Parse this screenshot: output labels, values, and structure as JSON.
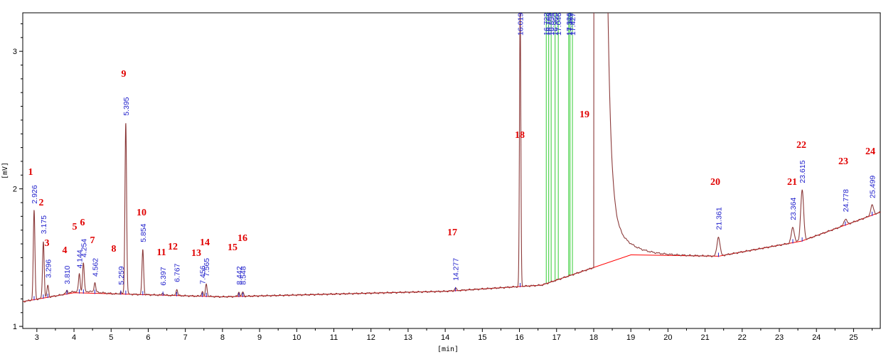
{
  "chart_data": {
    "type": "line",
    "title": "",
    "xlabel": "[min]",
    "ylabel": "[mV]",
    "xlim": [
      2.62,
      25.72
    ],
    "ylim": [
      0.985,
      3.28
    ],
    "x_ticks": [
      3,
      4,
      5,
      6,
      7,
      8,
      9,
      10,
      11,
      12,
      13,
      14,
      15,
      16,
      17,
      18,
      19,
      20,
      21,
      22,
      23,
      24,
      25
    ],
    "y_ticks": [
      1,
      2,
      3
    ],
    "grid": false,
    "series_color": "#8b3a3a",
    "baseline_color": "#ff0000",
    "marker_color": "#2222cc",
    "window_line_color": "#33cc33",
    "label_color": "#e00000",
    "baseline_points": [
      [
        2.62,
        1.18
      ],
      [
        4.0,
        1.245
      ],
      [
        8.0,
        1.215
      ],
      [
        14.0,
        1.255
      ],
      [
        16.6,
        1.3
      ],
      [
        19.0,
        1.52
      ],
      [
        21.36,
        1.51
      ],
      [
        23.6,
        1.62
      ],
      [
        25.72,
        1.83
      ]
    ],
    "peaks": [
      {
        "num": "1",
        "rt": "2.926",
        "height": 1.84
      },
      {
        "num": "2",
        "rt": "3.175",
        "height": 1.62
      },
      {
        "num": "3",
        "rt": "3.296",
        "height": 1.3
      },
      {
        "num": "4",
        "rt": "3.810",
        "height": 1.255
      },
      {
        "num": "5",
        "rt": "4.144",
        "height": 1.37
      },
      {
        "num": "6",
        "rt": "4.254",
        "height": 1.45
      },
      {
        "num": "7",
        "rt": "4.562",
        "height": 1.31
      },
      {
        "num": "8",
        "rt": "5.259",
        "height": 1.25
      },
      {
        "num": "9",
        "rt": "5.395",
        "height": 2.48
      },
      {
        "num": "10",
        "rt": "5.854",
        "height": 1.56
      },
      {
        "num": "11",
        "rt": "6.397",
        "height": 1.245
      },
      {
        "num": "12",
        "rt": "6.767",
        "height": 1.27
      },
      {
        "num": "13",
        "rt": "7.456",
        "height": 1.255
      },
      {
        "num": "14",
        "rt": "7.565",
        "height": 1.31
      },
      {
        "num": "15",
        "rt": "8.442",
        "height": 1.25
      },
      {
        "num": "16",
        "rt": "8.548",
        "height": 1.25
      },
      {
        "num": "17",
        "rt": "14.277",
        "height": 1.28
      },
      {
        "num": "18",
        "rt": "16.019",
        "height": 3.3
      },
      {
        "num": "19",
        "rt": "",
        "height": 3.3
      },
      {
        "num": "20",
        "rt": "21.361",
        "height": 1.65
      },
      {
        "num": "21",
        "rt": "23.364",
        "height": 1.72
      },
      {
        "num": "22",
        "rt": "23.615",
        "height": 1.99
      },
      {
        "num": "23",
        "rt": "24.778",
        "height": 1.78
      },
      {
        "num": "24",
        "rt": "25.499",
        "height": 1.88
      }
    ],
    "solvent_lines": [
      "16.722",
      "16.788",
      "16.854",
      "16.960",
      "17.046",
      "17.326",
      "17.362",
      "17.427"
    ]
  }
}
